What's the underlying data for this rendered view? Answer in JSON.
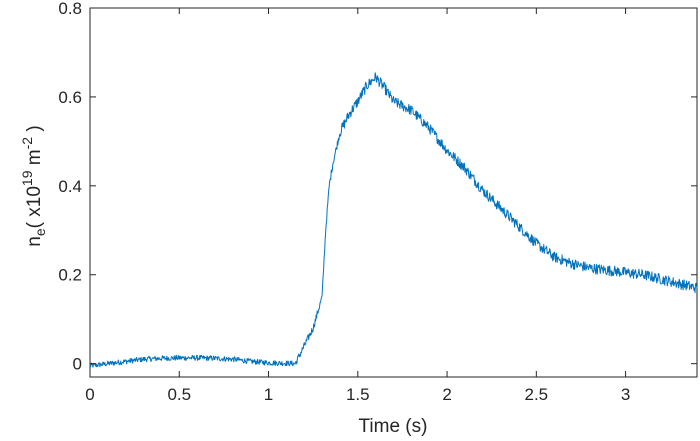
{
  "chart_data": {
    "type": "line",
    "title": "",
    "xlabel": "Time (s)",
    "ylabel": {
      "base": "n",
      "sub": "e",
      "open": "( x10",
      "exp": "19",
      "unit": " m",
      "unit_exp": "-2",
      "close": " )"
    },
    "xlim": [
      0,
      3.4
    ],
    "ylim": [
      -0.03,
      0.8
    ],
    "xticks": [
      0,
      0.5,
      1,
      1.5,
      2,
      2.5,
      3
    ],
    "xtick_labels": [
      "0",
      "0.5",
      "1",
      "1.5",
      "2",
      "2.5",
      "3"
    ],
    "yticks": [
      0,
      0.2,
      0.4,
      0.6,
      0.8
    ],
    "ytick_labels": [
      "0",
      "0.2",
      "0.4",
      "0.6",
      "0.8"
    ],
    "grid": false,
    "legend": "none",
    "series": [
      {
        "color": "#0072BD",
        "x": [
          0,
          0.1,
          0.2,
          0.3,
          0.4,
          0.5,
          0.6,
          0.7,
          0.8,
          0.9,
          1.0,
          1.1,
          1.15,
          1.2,
          1.25,
          1.3,
          1.32,
          1.34,
          1.36,
          1.4,
          1.45,
          1.5,
          1.55,
          1.6,
          1.65,
          1.7,
          1.8,
          1.9,
          2.0,
          2.1,
          2.2,
          2.3,
          2.4,
          2.5,
          2.6,
          2.7,
          2.8,
          2.9,
          3.0,
          3.1,
          3.2,
          3.3,
          3.4
        ],
        "y": [
          -0.005,
          0.0,
          0.005,
          0.01,
          0.012,
          0.013,
          0.013,
          0.012,
          0.01,
          0.005,
          0.002,
          0.001,
          0.0,
          0.04,
          0.08,
          0.15,
          0.3,
          0.4,
          0.45,
          0.52,
          0.56,
          0.59,
          0.625,
          0.645,
          0.62,
          0.59,
          0.57,
          0.53,
          0.48,
          0.44,
          0.39,
          0.35,
          0.31,
          0.27,
          0.24,
          0.225,
          0.215,
          0.21,
          0.205,
          0.2,
          0.19,
          0.18,
          0.17
        ]
      }
    ]
  }
}
